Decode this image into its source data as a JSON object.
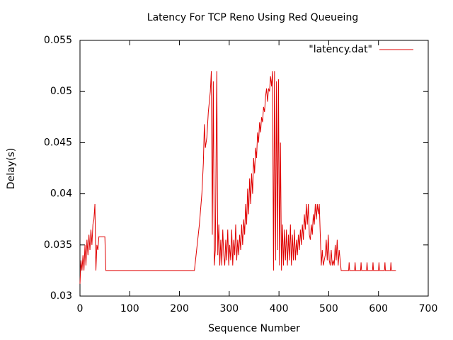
{
  "chart_data": {
    "type": "line",
    "title": "Latency For TCP Reno Using Red Queueing",
    "x_label": "Sequence Number",
    "y_label": "Delay(s)",
    "xlim": [
      0,
      700
    ],
    "xticks": [
      0,
      100,
      200,
      300,
      400,
      500,
      600,
      700
    ],
    "ylim": [
      0.03,
      0.055
    ],
    "yticks": [
      0.03,
      0.035,
      0.04,
      0.045,
      0.05,
      0.055
    ],
    "grid": false,
    "legend": "top-right",
    "x": [
      0,
      2,
      4,
      6,
      8,
      10,
      12,
      14,
      16,
      18,
      20,
      22,
      24,
      26,
      28,
      30,
      32,
      34,
      36,
      38,
      50,
      52,
      230,
      240,
      245,
      248,
      250,
      252,
      255,
      258,
      262,
      264,
      266,
      268,
      270,
      272,
      275,
      277,
      279,
      281,
      283,
      285,
      287,
      289,
      291,
      293,
      295,
      297,
      299,
      301,
      303,
      305,
      307,
      309,
      311,
      313,
      315,
      317,
      319,
      321,
      323,
      325,
      327,
      329,
      331,
      333,
      335,
      337,
      339,
      341,
      343,
      345,
      347,
      349,
      351,
      353,
      355,
      357,
      359,
      361,
      363,
      365,
      367,
      369,
      371,
      373,
      375,
      377,
      379,
      381,
      383,
      385,
      387,
      389,
      391,
      393,
      395,
      397,
      399,
      401,
      403,
      405,
      407,
      409,
      411,
      413,
      415,
      417,
      419,
      421,
      423,
      425,
      427,
      429,
      431,
      433,
      435,
      437,
      439,
      441,
      443,
      445,
      447,
      449,
      451,
      453,
      455,
      457,
      459,
      461,
      463,
      465,
      467,
      469,
      471,
      473,
      475,
      477,
      479,
      481,
      483,
      485,
      487,
      489,
      491,
      493,
      495,
      497,
      499,
      501,
      503,
      505,
      507,
      509,
      511,
      513,
      515,
      517,
      519,
      521,
      525,
      540,
      541,
      542,
      552,
      553,
      554,
      564,
      565,
      566,
      576,
      577,
      578,
      588,
      589,
      590,
      600,
      601,
      602,
      612,
      613,
      614,
      624,
      625,
      626,
      635
    ],
    "series": [
      {
        "name": "\"latency.dat\"",
        "color": "#e00000",
        "values": [
          0.0312,
          0.0335,
          0.0325,
          0.034,
          0.0325,
          0.035,
          0.033,
          0.0355,
          0.034,
          0.036,
          0.0345,
          0.0365,
          0.035,
          0.037,
          0.0375,
          0.039,
          0.0325,
          0.035,
          0.0345,
          0.0358,
          0.0358,
          0.0325,
          0.0325,
          0.037,
          0.04,
          0.043,
          0.0468,
          0.0445,
          0.0455,
          0.048,
          0.05,
          0.052,
          0.036,
          0.051,
          0.033,
          0.0345,
          0.052,
          0.034,
          0.037,
          0.033,
          0.0355,
          0.033,
          0.0365,
          0.034,
          0.033,
          0.0355,
          0.0335,
          0.0365,
          0.033,
          0.035,
          0.0335,
          0.0365,
          0.033,
          0.0355,
          0.034,
          0.037,
          0.0335,
          0.0355,
          0.034,
          0.036,
          0.0345,
          0.037,
          0.035,
          0.0375,
          0.036,
          0.039,
          0.037,
          0.0405,
          0.038,
          0.0415,
          0.039,
          0.042,
          0.04,
          0.0435,
          0.042,
          0.0445,
          0.0435,
          0.046,
          0.045,
          0.047,
          0.046,
          0.0475,
          0.047,
          0.0485,
          0.048,
          0.0495,
          0.0503,
          0.049,
          0.0503,
          0.05,
          0.0515,
          0.0505,
          0.052,
          0.0325,
          0.052,
          0.0335,
          0.051,
          0.0345,
          0.0512,
          0.033,
          0.045,
          0.0325,
          0.037,
          0.033,
          0.0365,
          0.0335,
          0.0365,
          0.033,
          0.036,
          0.0335,
          0.037,
          0.033,
          0.036,
          0.0335,
          0.0365,
          0.0335,
          0.0355,
          0.034,
          0.036,
          0.0345,
          0.0365,
          0.035,
          0.037,
          0.0355,
          0.038,
          0.0365,
          0.039,
          0.037,
          0.039,
          0.036,
          0.0355,
          0.037,
          0.036,
          0.038,
          0.037,
          0.039,
          0.0375,
          0.039,
          0.038,
          0.039,
          0.036,
          0.033,
          0.0345,
          0.033,
          0.0335,
          0.034,
          0.0355,
          0.0335,
          0.036,
          0.0335,
          0.033,
          0.0345,
          0.033,
          0.0335,
          0.033,
          0.035,
          0.0335,
          0.0355,
          0.033,
          0.0345,
          0.0325,
          0.0325,
          0.0333,
          0.0325,
          0.0325,
          0.0333,
          0.0325,
          0.0325,
          0.0333,
          0.0325,
          0.0325,
          0.0333,
          0.0325,
          0.0325,
          0.0333,
          0.0325,
          0.0325,
          0.0333,
          0.0325,
          0.0325,
          0.0333,
          0.0325,
          0.0325,
          0.0333,
          0.0325,
          0.0325
        ]
      }
    ]
  }
}
